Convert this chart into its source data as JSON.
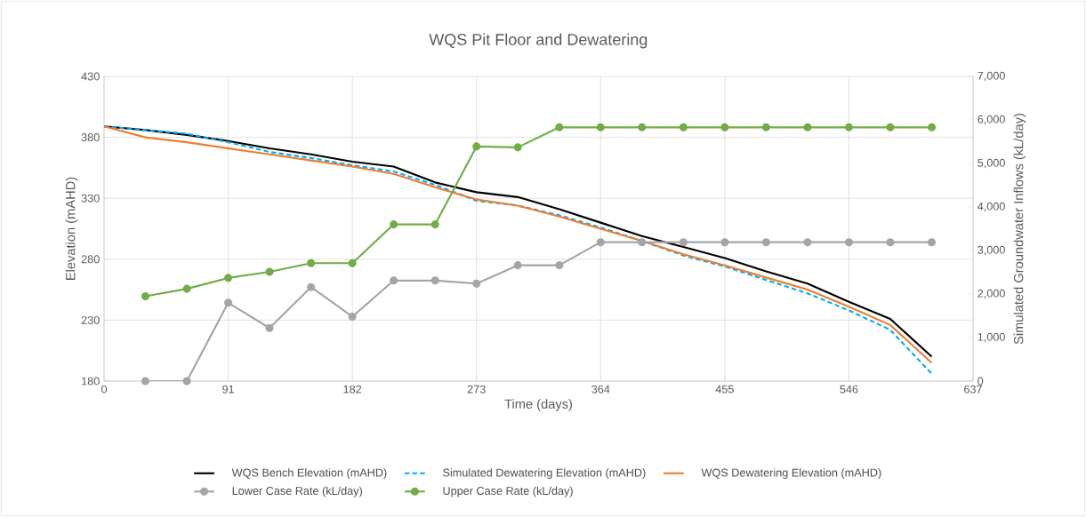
{
  "chart_data": {
    "type": "line",
    "title": "WQS Pit Floor and Dewatering",
    "xlabel": "Time (days)",
    "ylabel": "Elevation (mAHD)",
    "y2label": "Simulated Groundwater Inflows (kL/day)",
    "xlim": [
      0,
      637
    ],
    "xticks": [
      0,
      91,
      182,
      273,
      364,
      455,
      546,
      637
    ],
    "ylim": [
      180,
      430
    ],
    "yticks": [
      180,
      230,
      280,
      330,
      380,
      430
    ],
    "y2lim": [
      0,
      7000
    ],
    "y2ticks": [
      0,
      {
        "value": 1000,
        "label": "1,000"
      },
      {
        "value": 2000,
        "label": "2,000"
      },
      {
        "value": 3000,
        "label": "3,000"
      },
      {
        "value": 4000,
        "label": "4,000"
      },
      {
        "value": 5000,
        "label": "5,000"
      },
      {
        "value": 6000,
        "label": "6,000"
      },
      {
        "value": 7000,
        "label": "7,000"
      }
    ],
    "grid": true,
    "legend": "bottom",
    "series": [
      {
        "name": "WQS Bench Elevation (mAHD)",
        "color": "#000000",
        "line_style": "solid",
        "marker": "none",
        "x": [
          0,
          30.3,
          60.7,
          91,
          121.3,
          151.7,
          182,
          212.3,
          242.7,
          273,
          303.3,
          333.7,
          364,
          394.3,
          424.7,
          455,
          485.3,
          515.7,
          546,
          576.3,
          606.7
        ],
        "values": [
          389,
          386,
          382,
          377,
          371,
          366,
          360,
          356,
          343,
          335,
          331,
          321,
          310,
          299,
          290,
          281,
          270,
          260,
          245,
          231,
          200
        ]
      },
      {
        "name": "Simulated Dewatering Elevation (mAHD)",
        "color": "#00b0f0",
        "line_style": "dashed",
        "marker": "none",
        "x": [
          0,
          30.3,
          60.7,
          91,
          121.3,
          151.7,
          182,
          212.3,
          242.7,
          273,
          303.3,
          333.7,
          364,
          394.3,
          424.7,
          455,
          485.3,
          515.7,
          546,
          576.3,
          606.7
        ],
        "values": [
          389,
          386,
          383,
          376,
          368,
          363,
          357,
          352,
          341,
          328,
          324,
          316,
          306,
          295,
          283,
          274,
          263,
          252,
          238,
          222,
          186
        ]
      },
      {
        "name": "WQS Dewatering Elevation (mAHD)",
        "color": "#ed7d31",
        "line_style": "solid",
        "marker": "none",
        "x": [
          0,
          30.3,
          60.7,
          91,
          121.3,
          151.7,
          182,
          212.3,
          242.7,
          273,
          303.3,
          333.7,
          364,
          394.3,
          424.7,
          455,
          485.3,
          515.7,
          546,
          576.3,
          606.7
        ],
        "values": [
          389,
          380,
          376,
          371,
          366,
          361,
          356,
          350,
          339,
          329,
          324,
          315,
          305,
          295,
          284,
          275,
          265,
          255,
          241,
          226,
          195
        ]
      },
      {
        "name": "Lower Case Rate (kL/day)",
        "color": "#a5a5a5",
        "line_style": "solid",
        "marker": "circle",
        "axis": "y2",
        "x": [
          30.3,
          60.7,
          91,
          121.3,
          151.7,
          182,
          212.3,
          242.7,
          273,
          303.3,
          333.7,
          364,
          394.3,
          424.7,
          455,
          485.3,
          515.7,
          546,
          576.3,
          606.7
        ],
        "values": [
          0,
          0,
          1800,
          1220,
          2160,
          1480,
          2310,
          2310,
          2240,
          2660,
          2660,
          3190,
          3190,
          3190,
          3190,
          3190,
          3190,
          3190,
          3190,
          3190
        ]
      },
      {
        "name": "Upper Case Rate (kL/day)",
        "color": "#70ad47",
        "line_style": "solid",
        "marker": "circle",
        "axis": "y2",
        "x": [
          30.3,
          60.7,
          91,
          121.3,
          151.7,
          182,
          212.3,
          242.7,
          273,
          303.3,
          333.7,
          364,
          394.3,
          424.7,
          455,
          485.3,
          515.7,
          546,
          576.3,
          606.7
        ],
        "values": [
          1950,
          2120,
          2370,
          2510,
          2710,
          2710,
          3600,
          3600,
          5390,
          5370,
          5830,
          5830,
          5830,
          5830,
          5830,
          5830,
          5830,
          5830,
          5830,
          5830
        ]
      }
    ]
  }
}
